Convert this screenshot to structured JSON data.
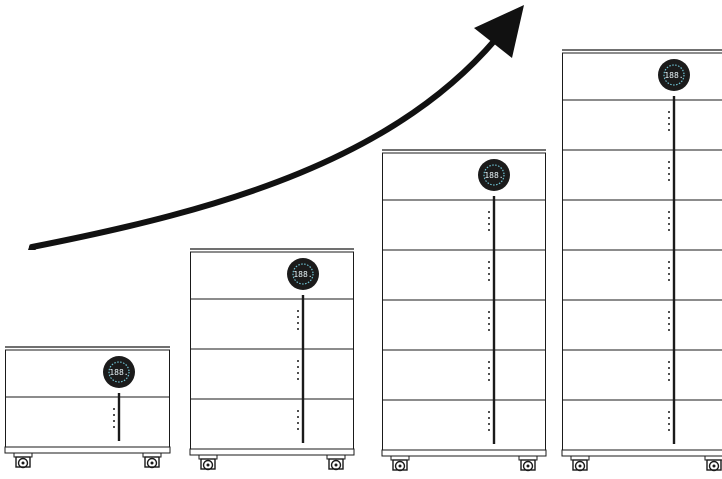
{
  "display": {
    "readout": "188."
  },
  "colors": {
    "outline": "#1a1a1a",
    "panel": "#ffffff",
    "display_bg": "#1b1b1b",
    "display_ring": "#6fc3d4",
    "arrow": "#111111"
  },
  "icons": {
    "arrow": "growth-arrow-icon",
    "display": "circular-display-icon",
    "wheel": "caster-wheel-icon"
  },
  "stacks": [
    {
      "name": "stack-small",
      "module_count": 1
    },
    {
      "name": "stack-medium",
      "module_count": 3
    },
    {
      "name": "stack-large",
      "module_count": 5
    },
    {
      "name": "stack-xlarge",
      "module_count": 7
    }
  ]
}
